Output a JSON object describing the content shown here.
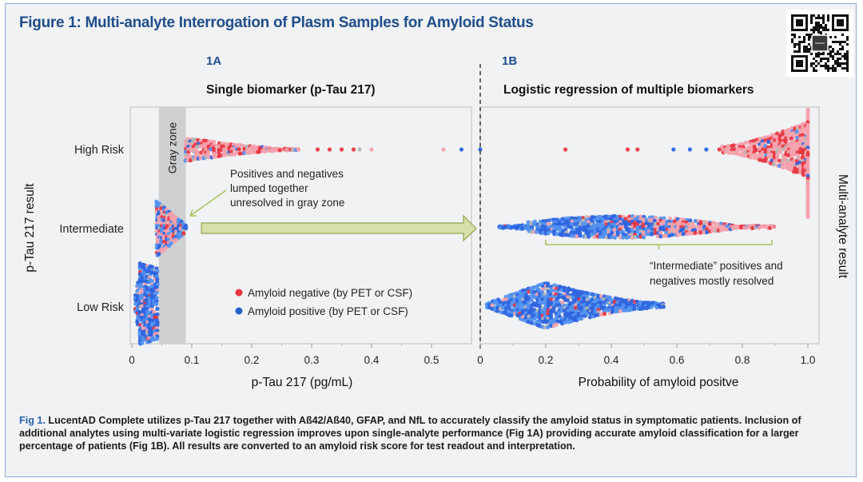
{
  "figure": {
    "title": "Figure 1: Multi-analyte Interrogation of Plasm Samples for Amyloid Status",
    "qr_icon": "qr-code-icon",
    "caption": {
      "lead": "Fig 1.",
      "text": " LucentAD Complete utilizes p-Tau 217 together with Aß42/Aß40, GFAP, and NfL to accurately classify the amyloid status in symptomatic patients. Inclusion of additional analytes using multi-variate logistic regression improves upon single-analyte performance (Fig 1A) providing accurate amyloid classification for a larger percentage of patients (Fig 1B). All results are converted to an amyloid risk score for test readout and interpretation."
    }
  },
  "colors": {
    "title_blue": "#1f4e8c",
    "negative": "#e8343f",
    "negative_light": "#f4a0aa",
    "positive": "#2a62e0",
    "positive_light": "#4f90f0",
    "indeterminate": "#b5b5b5",
    "gray_zone": "#cfd0d2",
    "annotation_green": "#a8c45a",
    "arrow_fill": "#d6e0a8"
  },
  "chart_data": [
    {
      "id": "1A",
      "panel_label": "1A",
      "type": "scatter",
      "subtype": "beeswarm",
      "title": "Single biomarker (p-Tau 217)",
      "xlabel": "p-Tau 217 (pg/mL)",
      "ylabel": "p-Tau 217 result",
      "xlim": [
        0,
        0.58
      ],
      "xticks": [
        0,
        0.1,
        0.2,
        0.3,
        0.4,
        0.5
      ],
      "xtick_labels": [
        "0",
        "0.1",
        "0.2",
        "0.3",
        "0.4",
        "0.5"
      ],
      "categories": [
        "High Risk",
        "Intermediate",
        "Low Risk"
      ],
      "gray_zone": {
        "label": "Gray zone",
        "x_range": [
          0.045,
          0.09
        ]
      },
      "groups": [
        {
          "category": "High Risk",
          "x_range": [
            0.09,
            0.56
          ],
          "x_dense_end": 0.18,
          "composition": "mostly amyloid negative",
          "neg_frac": 0.88,
          "outliers": [
            {
              "x": 0.31,
              "status": "negative"
            },
            {
              "x": 0.33,
              "status": "negative"
            },
            {
              "x": 0.35,
              "status": "negative"
            },
            {
              "x": 0.37,
              "status": "negative"
            },
            {
              "x": 0.38,
              "status": "indeterminate"
            },
            {
              "x": 0.4,
              "status": "negative"
            },
            {
              "x": 0.52,
              "status": "negative"
            },
            {
              "x": 0.55,
              "status": "positive"
            }
          ]
        },
        {
          "category": "Intermediate",
          "x_range": [
            0.045,
            0.09
          ],
          "composition": "mixed positive and negative",
          "neg_frac": 0.5
        },
        {
          "category": "Low Risk",
          "x_range": [
            0.005,
            0.045
          ],
          "composition": "mostly amyloid positive",
          "neg_frac": 0.15
        }
      ],
      "legend": {
        "placement": "bottom-right",
        "items": [
          {
            "label": "Amyloid negative (by PET or CSF)",
            "status": "negative"
          },
          {
            "label": "Amyloid positive (by PET or CSF)",
            "status": "positive"
          }
        ]
      },
      "annotation": "Positives and negatives lumped together unresolved in gray zone"
    },
    {
      "id": "1B",
      "panel_label": "1B",
      "type": "scatter",
      "subtype": "beeswarm",
      "title": "Logistic regression of multiple biomarkers",
      "xlabel": "Probability of amyloid positve",
      "ylabel": "Multi-analyte result",
      "xlim": [
        0,
        1.02
      ],
      "xticks": [
        0,
        0.2,
        0.4,
        0.6,
        0.8,
        1.0
      ],
      "xtick_labels": [
        "0",
        "0.2",
        "0.4",
        "0.6",
        "0.8",
        "1.0"
      ],
      "categories": [
        "High Risk",
        "Intermediate",
        "Low Risk"
      ],
      "groups": [
        {
          "category": "High Risk",
          "x_range": [
            0.74,
            1.0
          ],
          "composition": "mostly amyloid negative",
          "neg_frac": 0.9,
          "outliers": [
            {
              "x": 0.0,
              "status": "positive"
            },
            {
              "x": 0.26,
              "status": "negative"
            },
            {
              "x": 0.45,
              "status": "negative"
            },
            {
              "x": 0.48,
              "status": "negative"
            },
            {
              "x": 0.59,
              "status": "positive"
            },
            {
              "x": 0.64,
              "status": "positive"
            },
            {
              "x": 0.69,
              "status": "positive"
            },
            {
              "x": 0.73,
              "status": "negative"
            }
          ]
        },
        {
          "category": "Intermediate",
          "x_range": [
            0.06,
            0.9
          ],
          "composition": "positives left, negatives right",
          "neg_frac": 0.5
        },
        {
          "category": "Low Risk",
          "x_range": [
            0.02,
            0.56
          ],
          "peak_x": 0.2,
          "composition": "mostly amyloid positive",
          "neg_frac": 0.08
        }
      ],
      "annotation": "“Intermediate” positives and negatives mostly resolved",
      "annotation_bracket_x": [
        0.2,
        0.89
      ]
    }
  ],
  "arrow": {
    "from": "1A intermediate",
    "to": "1B intermediate"
  }
}
